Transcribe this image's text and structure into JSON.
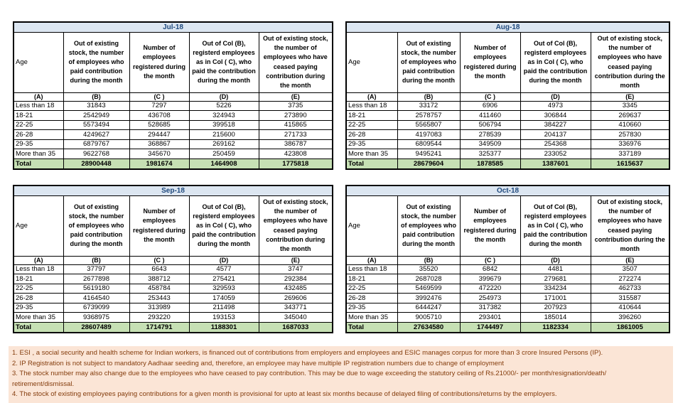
{
  "columns": {
    "age": "Age",
    "b": "Out of existing stock, the number of employees who paid contribution during the month",
    "c": "Number of employees registered during the month",
    "d": "Out of Col (B), registerd employees as in Col ( C), who paid the contribution during the month",
    "e": "Out of existing stock, the number of  employees who have ceased paying contribution during the month"
  },
  "letters": [
    "(A)",
    "(B)",
    "(C )",
    "(D)",
    "(E)"
  ],
  "tables": [
    {
      "title": "Jul-18",
      "rows": [
        [
          "Less than 18",
          "31843",
          "7297",
          "5226",
          "3735"
        ],
        [
          "18-21",
          "2542949",
          "436708",
          "324943",
          "273890"
        ],
        [
          "22-25",
          "5573494",
          "528685",
          "399518",
          "415865"
        ],
        [
          "26-28",
          "4249627",
          "294447",
          "215600",
          "271733"
        ],
        [
          "29-35",
          "6879767",
          "368867",
          "269162",
          "386787"
        ],
        [
          "More than 35",
          "9622768",
          "345670",
          "250459",
          "423808"
        ]
      ],
      "total": [
        "Total",
        "28900448",
        "1981674",
        "1464908",
        "1775818"
      ]
    },
    {
      "title": "Aug-18",
      "rows": [
        [
          "Less than 18",
          "33172",
          "6906",
          "4973",
          "3345"
        ],
        [
          "18-21",
          "2578757",
          "411460",
          "306844",
          "269637"
        ],
        [
          "22-25",
          "5565807",
          "506794",
          "384227",
          "410660"
        ],
        [
          "26-28",
          "4197083",
          "278539",
          "204137",
          "257830"
        ],
        [
          "29-35",
          "6809544",
          "349509",
          "254368",
          "336976"
        ],
        [
          "More than 35",
          "9495241",
          "325377",
          "233052",
          "337189"
        ]
      ],
      "total": [
        "Total",
        "28679604",
        "1878585",
        "1387601",
        "1615637"
      ]
    },
    {
      "title": "Sep-18",
      "rows": [
        [
          "Less than 18",
          "37797",
          "6643",
          "4577",
          "3747"
        ],
        [
          "18-21",
          "2677898",
          "388712",
          "275421",
          "292384"
        ],
        [
          "22-25",
          "5619180",
          "458784",
          "329593",
          "432485"
        ],
        [
          "26-28",
          "4164540",
          "253443",
          "174059",
          "269606"
        ],
        [
          "29-35",
          "6739099",
          "313989",
          "211498",
          "343771"
        ],
        [
          "More than 35",
          "9368975",
          "293220",
          "193153",
          "345040"
        ]
      ],
      "total": [
        "Total",
        "28607489",
        "1714791",
        "1188301",
        "1687033"
      ]
    },
    {
      "title": "Oct-18",
      "rows": [
        [
          "Less than 18",
          "35520",
          "6842",
          "4481",
          "3507"
        ],
        [
          "18-21",
          "2687028",
          "399679",
          "279681",
          "272274"
        ],
        [
          "22-25",
          "5469599",
          "472220",
          "334234",
          "462733"
        ],
        [
          "26-28",
          "3992476",
          "254973",
          "171001",
          "315587"
        ],
        [
          "29-35",
          "6444247",
          "317382",
          "207923",
          "410644"
        ],
        [
          "More than 35",
          "9005710",
          "293401",
          "185014",
          "396260"
        ]
      ],
      "total": [
        "Total",
        "27634580",
        "1744497",
        "1182334",
        "1861005"
      ]
    }
  ],
  "footnotes": [
    "1. ESI , a social security and health scheme for Indian workers, is financed out of contributions from employers and employees and ESIC manages corpus for more than 3 crore Insured Persons (IP).",
    "2. IP Registration is not subject to mandatory Aadhaar seeding and, therefore, an employee may have multiple IP registration numbers due to change of employment",
    "3. The stock number may also change due to the employees who have ceased to pay contribution. This may  be due to wage exceeding the statutory ceiling of  Rs.21000/- per month/resignation/death/ retirement/dismissal.",
    "4. The stock of existing employees paying contributions for a given month is provisional for upto at least six months because of delayed filing of contributions/returns by the employers."
  ],
  "colors": {
    "title_bg": "#DCE6F1",
    "title_text": "#1F497D",
    "total_bg": "#C6E0B4",
    "footnote_bg": "#FBE5D6",
    "footnote_text": "#843C0C"
  }
}
